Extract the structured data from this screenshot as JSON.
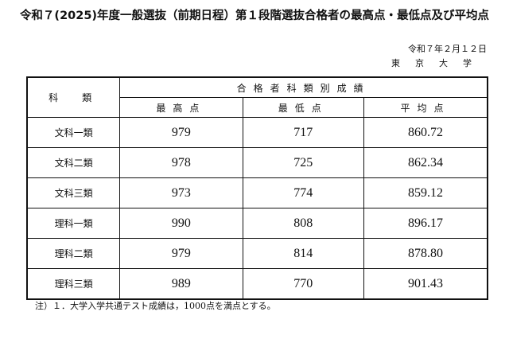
{
  "title": "令和７(2025)年度一般選抜（前期日程）第１段階選抜合格者の最高点・最低点及び平均点",
  "date": "令和７年２月１２日",
  "organization": "東京大学",
  "table": {
    "col_category": "科　類",
    "group_header": "合格者科類別成績",
    "columns": [
      "最高点",
      "最低点",
      "平均点"
    ],
    "rows": [
      {
        "category": "文科一類",
        "max": "979",
        "min": "717",
        "avg": "860.72"
      },
      {
        "category": "文科二類",
        "max": "978",
        "min": "725",
        "avg": "862.34"
      },
      {
        "category": "文科三類",
        "max": "973",
        "min": "774",
        "avg": "859.12"
      },
      {
        "category": "理科一類",
        "max": "990",
        "min": "808",
        "avg": "896.17"
      },
      {
        "category": "理科二類",
        "max": "979",
        "min": "814",
        "avg": "878.80"
      },
      {
        "category": "理科三類",
        "max": "989",
        "min": "770",
        "avg": "901.43"
      }
    ]
  },
  "note": "注）１．大学入学共通テスト成績は，1000点を満点とする。"
}
